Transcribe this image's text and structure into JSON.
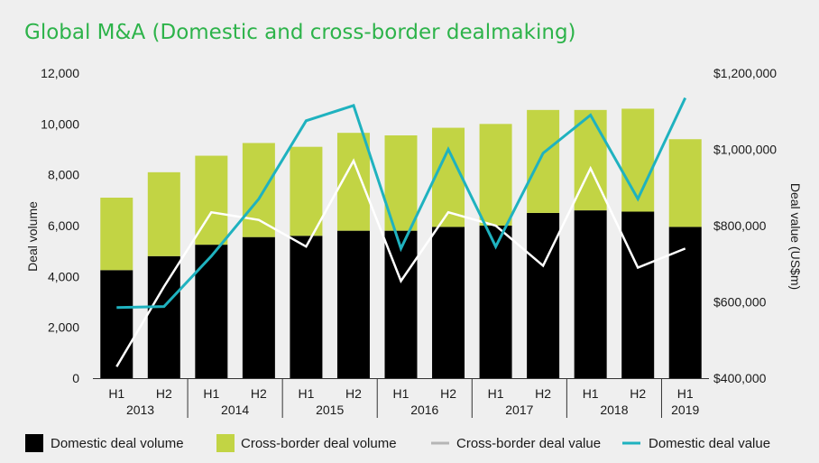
{
  "chart_data": {
    "type": "bar",
    "title": "Global M&A (Domestic and cross-border dealmaking)",
    "ylabel": "Deal volume",
    "y2label": "Deal value (US$m)",
    "categories": [
      "H1",
      "H2",
      "H1",
      "H2",
      "H1",
      "H2",
      "H1",
      "H2",
      "H1",
      "H2",
      "H1",
      "H2",
      "H1"
    ],
    "years": [
      {
        "label": "2013",
        "span": [
          0,
          1
        ]
      },
      {
        "label": "2014",
        "span": [
          2,
          3
        ]
      },
      {
        "label": "2015",
        "span": [
          4,
          5
        ]
      },
      {
        "label": "2016",
        "span": [
          6,
          7
        ]
      },
      {
        "label": "2017",
        "span": [
          8,
          9
        ]
      },
      {
        "label": "2018",
        "span": [
          10,
          11
        ]
      },
      {
        "label": "2019",
        "span": [
          12,
          12
        ]
      }
    ],
    "ylim": [
      0,
      12000
    ],
    "yticks": [
      0,
      2000,
      4000,
      6000,
      8000,
      10000,
      12000
    ],
    "ytick_labels": [
      "0",
      "2,000",
      "4,000",
      "6,000",
      "8,000",
      "10,000",
      "12,000"
    ],
    "y2lim": [
      400000,
      1200000
    ],
    "y2ticks": [
      400000,
      600000,
      800000,
      1000000,
      1200000
    ],
    "y2tick_labels": [
      "$400,000",
      "$600,000",
      "$800,000",
      "$1,000,000",
      "$1,200,000"
    ],
    "series": [
      {
        "name": "Domestic deal volume",
        "kind": "bar",
        "axis": "left",
        "color": "#000000",
        "values": [
          4250,
          4800,
          5250,
          5550,
          5600,
          5800,
          5800,
          5950,
          6000,
          6500,
          6600,
          6550,
          5950
        ]
      },
      {
        "name": "Cross-border deal volume",
        "kind": "bar",
        "axis": "left",
        "color": "#c2d444",
        "values": [
          2850,
          3300,
          3500,
          3700,
          3500,
          3850,
          3750,
          3900,
          4000,
          4050,
          3950,
          4050,
          3450
        ]
      },
      {
        "name": "Cross-border deal value",
        "kind": "line",
        "axis": "right",
        "color": "#ffffff",
        "values": [
          430000,
          640000,
          835000,
          815000,
          745000,
          970000,
          655000,
          835000,
          800000,
          695000,
          950000,
          690000,
          740000
        ]
      },
      {
        "name": "Domestic deal value",
        "kind": "line",
        "axis": "right",
        "color": "#1fb2bf",
        "values": [
          585000,
          588000,
          720000,
          870000,
          1075000,
          1115000,
          740000,
          1000000,
          745000,
          990000,
          1090000,
          870000,
          1135000
        ]
      }
    ],
    "legend_position": "bottom",
    "grid": false
  }
}
